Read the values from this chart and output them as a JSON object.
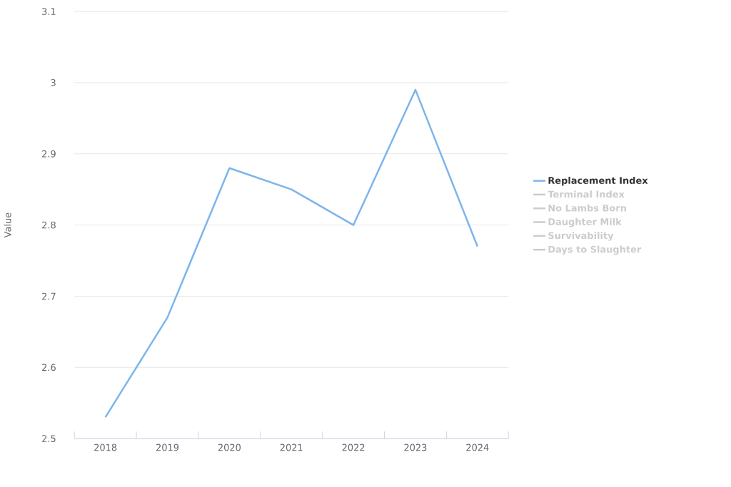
{
  "chart_data": {
    "type": "line",
    "ylabel": "Value",
    "categories": [
      "2018",
      "2019",
      "2020",
      "2021",
      "2022",
      "2023",
      "2024"
    ],
    "series": [
      {
        "name": "Replacement Index",
        "color": "#7cb5ec",
        "values": [
          2.53,
          2.67,
          2.88,
          2.85,
          2.8,
          2.99,
          2.77
        ]
      },
      {
        "name": "Terminal Index",
        "color": "#cccccc",
        "values": [
          null,
          null,
          null,
          null,
          null,
          null,
          null
        ]
      },
      {
        "name": "No Lambs Born",
        "color": "#cccccc",
        "values": [
          null,
          null,
          null,
          null,
          null,
          null,
          null
        ]
      },
      {
        "name": "Daughter Milk",
        "color": "#cccccc",
        "values": [
          null,
          null,
          null,
          null,
          null,
          null,
          null
        ]
      },
      {
        "name": "Survivability",
        "color": "#cccccc",
        "values": [
          null,
          null,
          null,
          null,
          null,
          null,
          null
        ]
      },
      {
        "name": "Days to Slaughter",
        "color": "#cccccc",
        "values": [
          null,
          null,
          null,
          null,
          null,
          null,
          null
        ]
      }
    ],
    "ylim": [
      2.5,
      3.1
    ],
    "yticks": [
      2.5,
      2.6,
      2.7,
      2.8,
      2.9,
      3,
      3.1
    ],
    "grid": "y",
    "legend": "right",
    "marker": "none",
    "line_style": "solid"
  }
}
